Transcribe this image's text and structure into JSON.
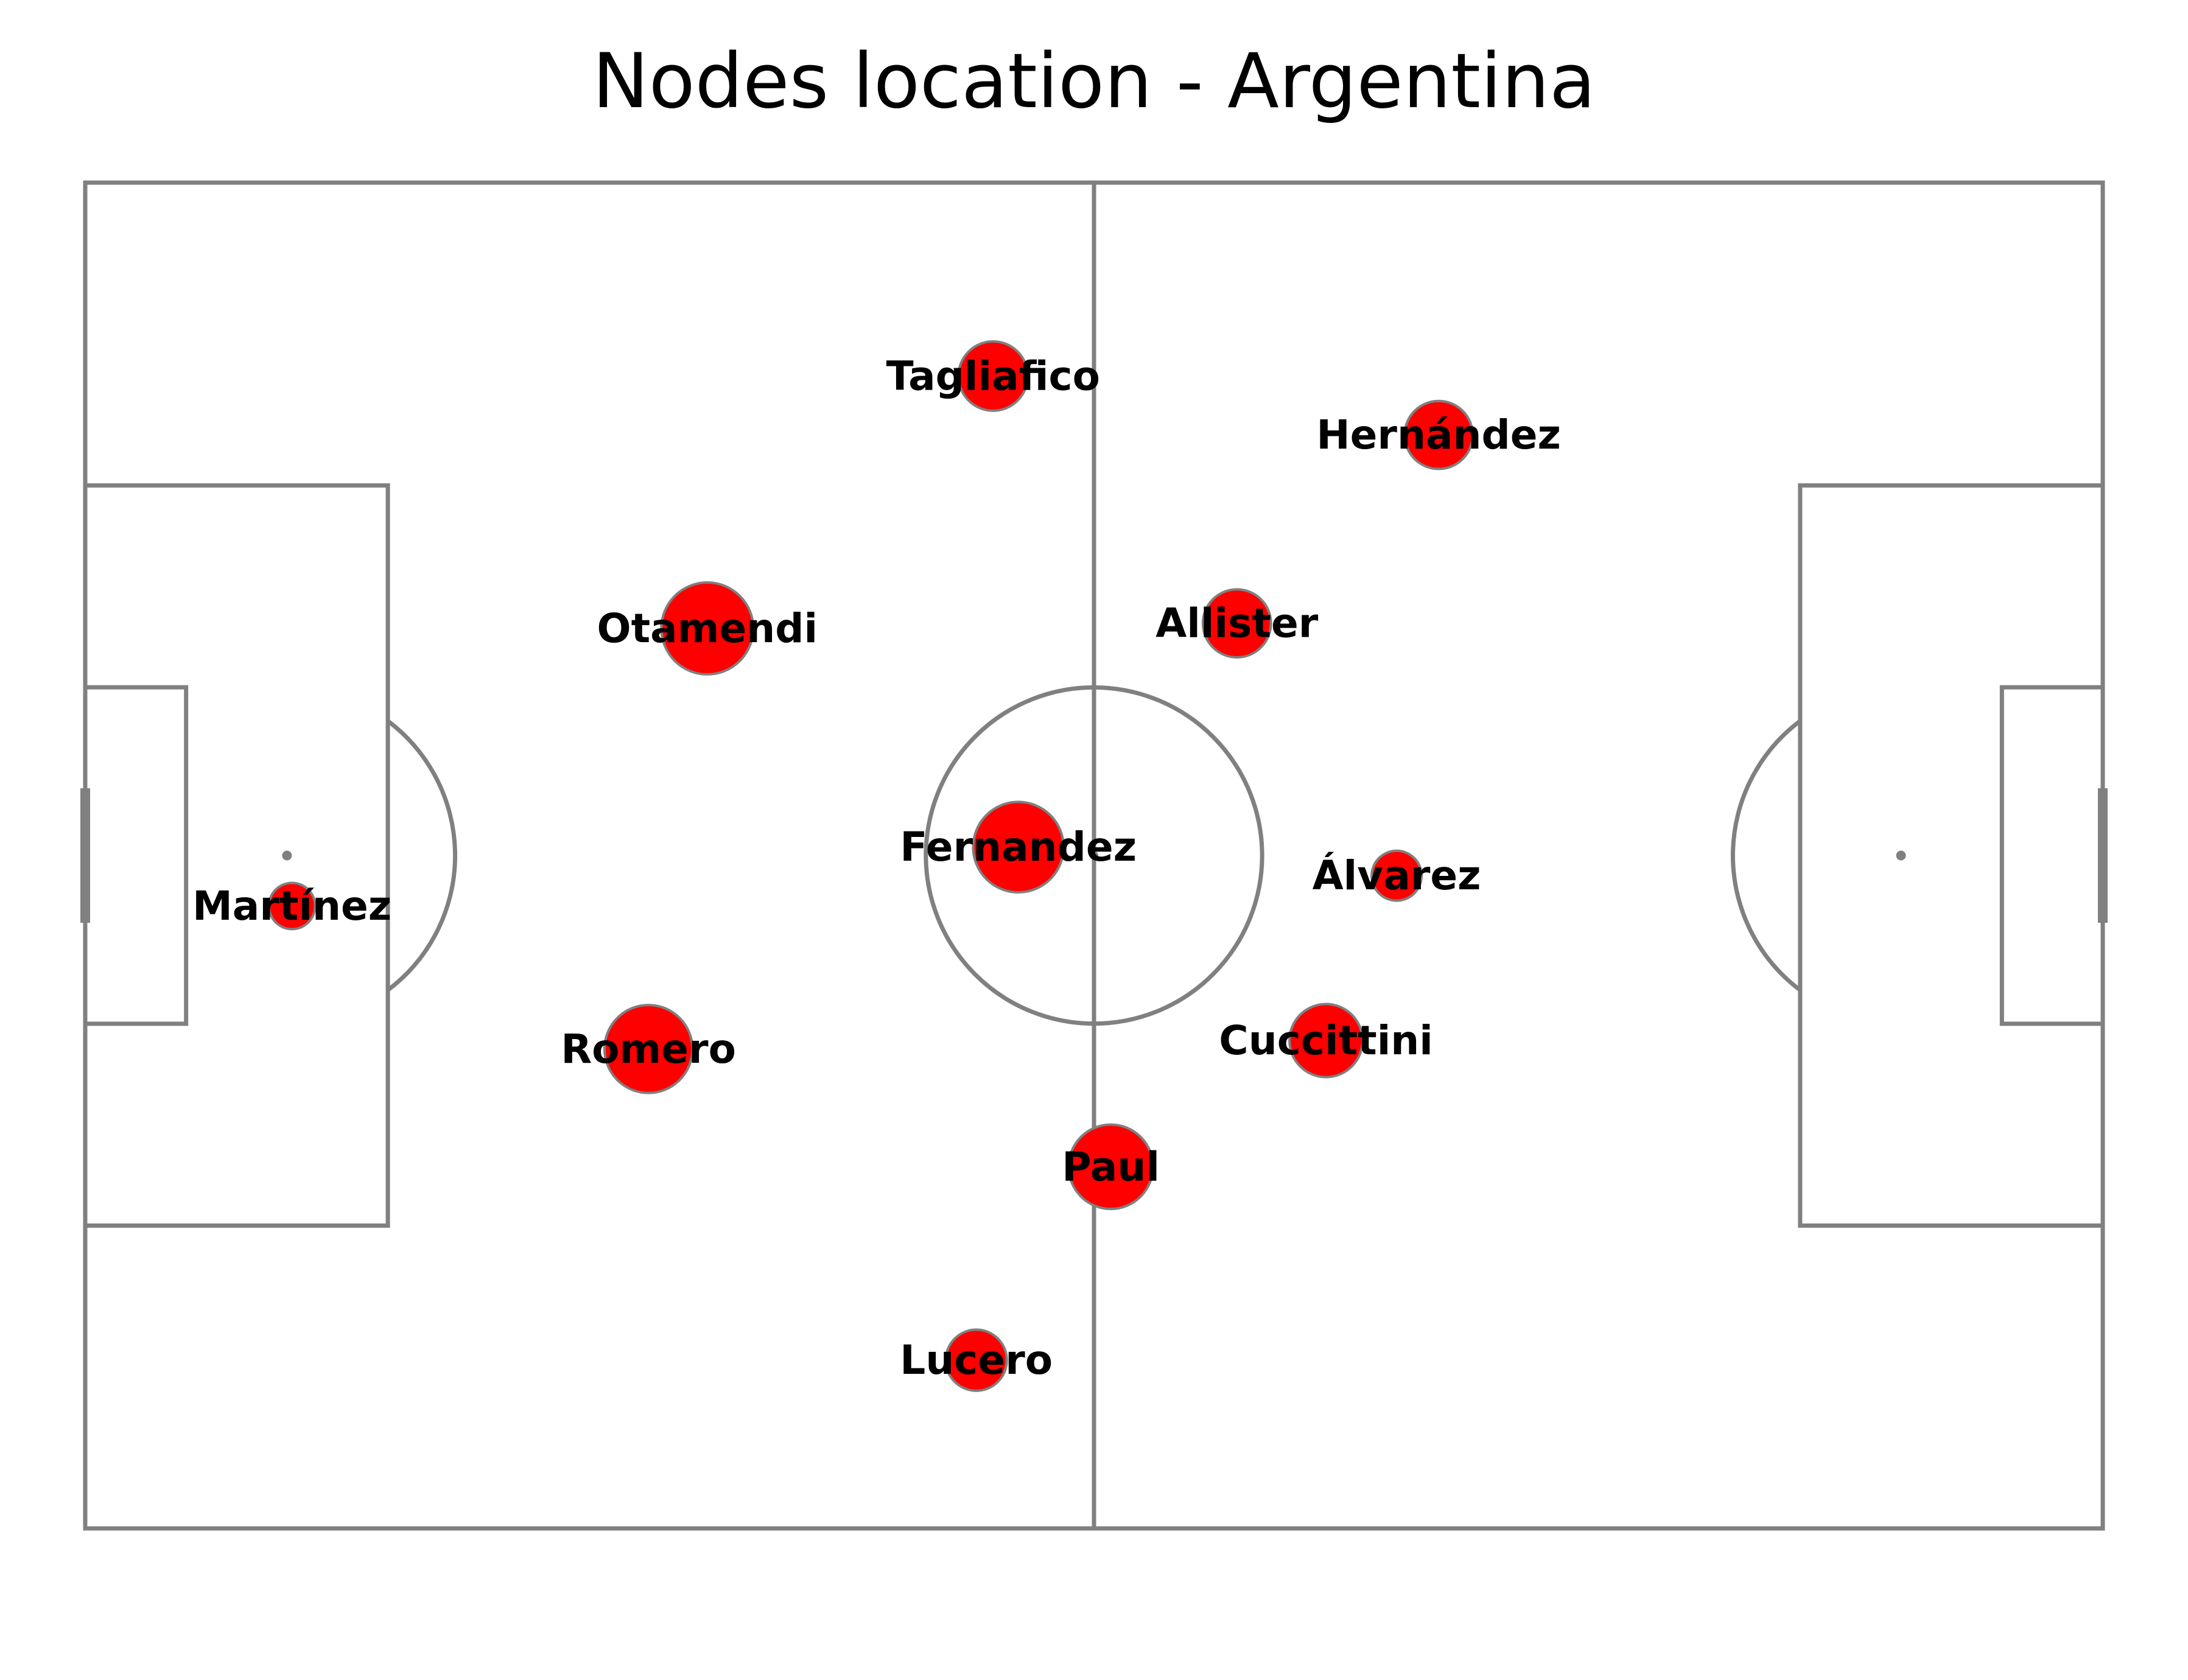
{
  "chart_data": {
    "type": "scatter",
    "title": "Nodes location - Argentina",
    "xlabel": "",
    "ylabel": "",
    "xlim": [
      0,
      120
    ],
    "ylim": [
      0,
      80
    ],
    "grid": false,
    "legend": "none",
    "colors": {
      "node_fill": "#ff0000",
      "node_edge": "#808080",
      "pitch_lines": "#808080",
      "background": "#ffffff"
    },
    "nodes": [
      {
        "name": "Tagliafico",
        "x": 54.0,
        "y": 68.5,
        "size": 540
      },
      {
        "name": "Hernández",
        "x": 80.5,
        "y": 65.0,
        "size": 520
      },
      {
        "name": "Otamendi",
        "x": 37.0,
        "y": 53.5,
        "size": 950
      },
      {
        "name": "Allister",
        "x": 68.5,
        "y": 53.8,
        "size": 520
      },
      {
        "name": "Fernandez",
        "x": 55.5,
        "y": 40.5,
        "size": 920
      },
      {
        "name": "Álvarez",
        "x": 78.0,
        "y": 38.8,
        "size": 280
      },
      {
        "name": "Martínez",
        "x": 12.3,
        "y": 37.0,
        "size": 240
      },
      {
        "name": "Romero",
        "x": 33.5,
        "y": 28.5,
        "size": 870
      },
      {
        "name": "Cuccittini",
        "x": 73.8,
        "y": 29.0,
        "size": 600
      },
      {
        "name": "Paul",
        "x": 61.0,
        "y": 21.5,
        "size": 800
      },
      {
        "name": "Lucero",
        "x": 53.0,
        "y": 10.0,
        "size": 420
      }
    ]
  }
}
